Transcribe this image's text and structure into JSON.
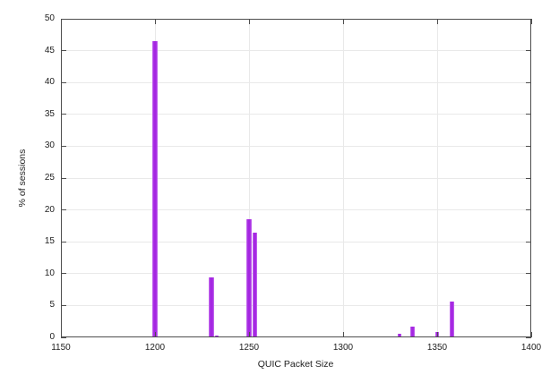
{
  "chart_data": {
    "type": "bar",
    "title": "",
    "xlabel": "QUIC Packet Size",
    "ylabel": "% of sessions",
    "xlim": [
      1150,
      1400
    ],
    "ylim": [
      0,
      50
    ],
    "x_ticks": [
      1150,
      1200,
      1250,
      1300,
      1350,
      1400
    ],
    "y_ticks": [
      0,
      5,
      10,
      15,
      20,
      25,
      30,
      35,
      40,
      45,
      50
    ],
    "grid": true,
    "legend": "none",
    "bar_color": "#a527e2",
    "axis_color": "#4e4e4e",
    "grid_color": "#e9e9e9",
    "points": [
      {
        "x": 1200,
        "y": 46.5,
        "w": 3.0
      },
      {
        "x": 1230,
        "y": 9.4,
        "w": 2.5
      },
      {
        "x": 1233,
        "y": 0.3,
        "w": 2.0
      },
      {
        "x": 1250,
        "y": 18.5,
        "w": 2.5
      },
      {
        "x": 1253,
        "y": 16.4,
        "w": 2.5
      },
      {
        "x": 1330,
        "y": 0.6,
        "w": 2.2
      },
      {
        "x": 1337,
        "y": 1.7,
        "w": 2.2
      },
      {
        "x": 1350,
        "y": 0.8,
        "w": 2.2
      },
      {
        "x": 1358,
        "y": 5.6,
        "w": 2.5
      }
    ]
  }
}
